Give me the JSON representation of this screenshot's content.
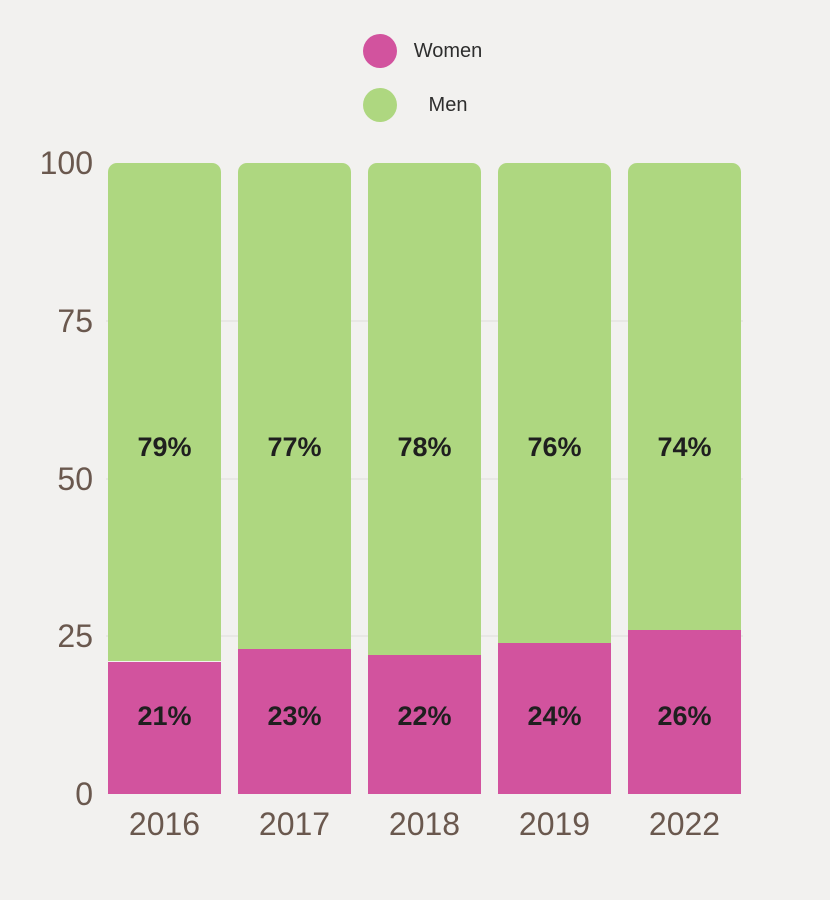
{
  "background_color": "#f2f1ef",
  "legend": {
    "items": [
      {
        "label": "Women",
        "color": "#d2539e"
      },
      {
        "label": "Men",
        "color": "#aed780"
      }
    ]
  },
  "chart_data": {
    "type": "bar",
    "stacked": true,
    "orientation": "vertical",
    "title": "",
    "xlabel": "",
    "ylabel": "",
    "categories": [
      "2016",
      "2017",
      "2018",
      "2019",
      "2022"
    ],
    "series": [
      {
        "name": "Women",
        "color": "#d2539e",
        "values": [
          21,
          23,
          22,
          24,
          26
        ],
        "labels": [
          "21%",
          "23%",
          "22%",
          "24%",
          "26%"
        ]
      },
      {
        "name": "Men",
        "color": "#aed780",
        "values": [
          79,
          77,
          78,
          76,
          74
        ],
        "labels": [
          "79%",
          "77%",
          "78%",
          "76%",
          "74%"
        ]
      }
    ],
    "ylim": [
      0,
      100
    ],
    "yticks": [
      100,
      75,
      50,
      25,
      0
    ],
    "grid": true,
    "gridline_color": "#e8e7e4",
    "legend_position": "top-center",
    "axis_tick_color": "#6a584e",
    "bar_label_color": "#1f1f1f"
  }
}
